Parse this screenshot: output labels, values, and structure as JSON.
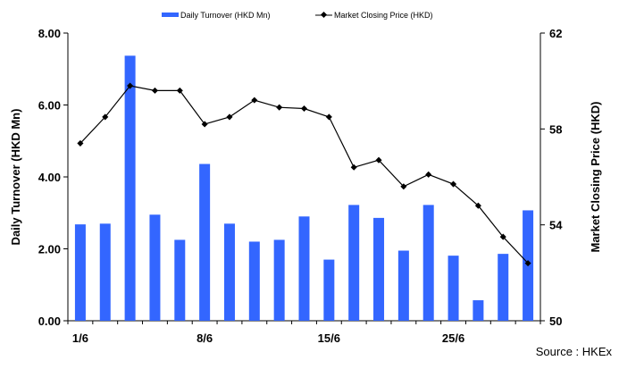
{
  "chart_data": {
    "type": "bar+line",
    "legend": {
      "bar_label": "Daily Turnover (HKD Mn)",
      "line_label": "Market Closing Price (HKD)",
      "placement": "top-center"
    },
    "ylabel_left": "Daily Turnover (HKD Mn)",
    "ylabel_right": "Market Closing Price (HKD)",
    "y_left": {
      "min": 0,
      "max": 8,
      "ticks": [
        "0.00",
        "2.00",
        "4.00",
        "6.00",
        "8.00"
      ]
    },
    "y_right": {
      "min": 50,
      "max": 62,
      "ticks": [
        "50",
        "54",
        "58",
        "62"
      ]
    },
    "x_ticks": [
      "1/6",
      "8/6",
      "15/6",
      "25/6"
    ],
    "x_tick_positions": [
      0,
      5,
      10,
      15
    ],
    "grid": false,
    "series": [
      {
        "name": "Daily Turnover (HKD Mn)",
        "type": "bar",
        "color": "#3366ff",
        "values": [
          2.68,
          2.7,
          7.37,
          2.95,
          2.25,
          4.36,
          2.7,
          2.2,
          2.25,
          2.9,
          1.7,
          3.22,
          2.86,
          1.95,
          3.22,
          1.81,
          0.57,
          1.86,
          3.07
        ]
      },
      {
        "name": "Market Closing Price (HKD)",
        "type": "line",
        "color": "#000000",
        "values": [
          57.4,
          58.5,
          59.8,
          59.6,
          59.6,
          58.2,
          58.5,
          59.2,
          58.9,
          58.85,
          58.5,
          56.4,
          56.7,
          55.6,
          56.1,
          55.7,
          54.8,
          53.5,
          52.4
        ]
      }
    ]
  },
  "source": "Source : HKEx"
}
